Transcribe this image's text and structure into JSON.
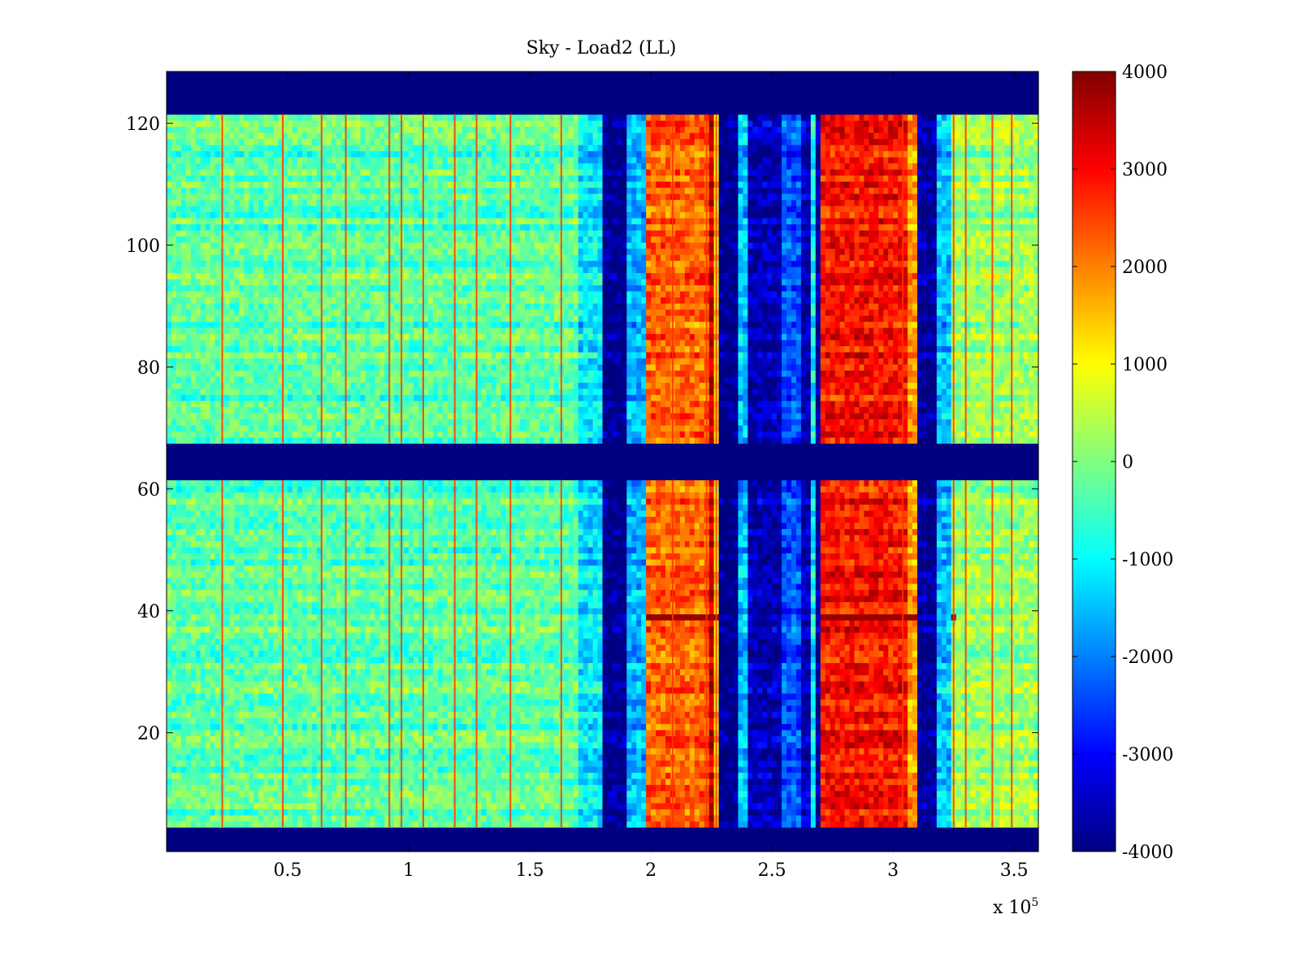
{
  "chart_data": {
    "type": "heatmap",
    "title": "Sky - Load2 (LL)",
    "xlabel": "",
    "ylabel": "",
    "colormap": "jet",
    "xlim": [
      0,
      360000
    ],
    "ylim": [
      1,
      128
    ],
    "x_exponent_label": "x 10",
    "x_exponent_power": "5",
    "x_ticks": [
      {
        "value": 50000,
        "label": "0.5"
      },
      {
        "value": 100000,
        "label": "1"
      },
      {
        "value": 150000,
        "label": "1.5"
      },
      {
        "value": 200000,
        "label": "2"
      },
      {
        "value": 250000,
        "label": "2.5"
      },
      {
        "value": 300000,
        "label": "3"
      },
      {
        "value": 350000,
        "label": "3.5"
      }
    ],
    "y_ticks": [
      {
        "value": 20,
        "label": "20"
      },
      {
        "value": 40,
        "label": "40"
      },
      {
        "value": 60,
        "label": "60"
      },
      {
        "value": 80,
        "label": "80"
      },
      {
        "value": 100,
        "label": "100"
      },
      {
        "value": 120,
        "label": "120"
      }
    ],
    "colorbar": {
      "clim": [
        -4000,
        4000
      ],
      "ticks": [
        {
          "value": 4000,
          "label": "4000"
        },
        {
          "value": 3000,
          "label": "3000"
        },
        {
          "value": 2000,
          "label": "2000"
        },
        {
          "value": 1000,
          "label": "1000"
        },
        {
          "value": 0,
          "label": "0"
        },
        {
          "value": -1000,
          "label": "-1000"
        },
        {
          "value": -2000,
          "label": "-2000"
        },
        {
          "value": -3000,
          "label": "-3000"
        },
        {
          "value": -4000,
          "label": "-4000"
        }
      ]
    },
    "masked_rows": [
      [
        1,
        4
      ],
      [
        62,
        67
      ],
      [
        122,
        128
      ]
    ],
    "column_profile": [
      {
        "x_start": 0,
        "x_end": 170000,
        "value": -300
      },
      {
        "x_start": 170000,
        "x_end": 180000,
        "value": -1200
      },
      {
        "x_start": 180000,
        "x_end": 190000,
        "value": -4000
      },
      {
        "x_start": 190000,
        "x_end": 198000,
        "value": -1600
      },
      {
        "x_start": 198000,
        "x_end": 224000,
        "value": 2200
      },
      {
        "x_start": 224000,
        "x_end": 226000,
        "value": 3500
      },
      {
        "x_start": 226000,
        "x_end": 228000,
        "value": 1200
      },
      {
        "x_start": 228000,
        "x_end": 236000,
        "value": -4000
      },
      {
        "x_start": 236000,
        "x_end": 240000,
        "value": -1500
      },
      {
        "x_start": 240000,
        "x_end": 254000,
        "value": -3600
      },
      {
        "x_start": 254000,
        "x_end": 262000,
        "value": -2400
      },
      {
        "x_start": 262000,
        "x_end": 266000,
        "value": -3600
      },
      {
        "x_start": 266000,
        "x_end": 268000,
        "value": -1000
      },
      {
        "x_start": 268000,
        "x_end": 270000,
        "value": -3800
      },
      {
        "x_start": 270000,
        "x_end": 306000,
        "value": 2900
      },
      {
        "x_start": 306000,
        "x_end": 310000,
        "value": 1800
      },
      {
        "x_start": 310000,
        "x_end": 318000,
        "value": -3900
      },
      {
        "x_start": 318000,
        "x_end": 324000,
        "value": -1500
      },
      {
        "x_start": 324000,
        "x_end": 360000,
        "value": 200
      }
    ],
    "streak_x": [
      23000,
      48000,
      64000,
      74000,
      92000,
      97000,
      106000,
      119000,
      128000,
      142000,
      163000,
      209000,
      223000,
      227000,
      304000,
      325000,
      330000,
      341000,
      349000
    ],
    "hot_row": {
      "y": 39,
      "value": 3800,
      "x_start": 180000,
      "x_end": 325000
    }
  }
}
